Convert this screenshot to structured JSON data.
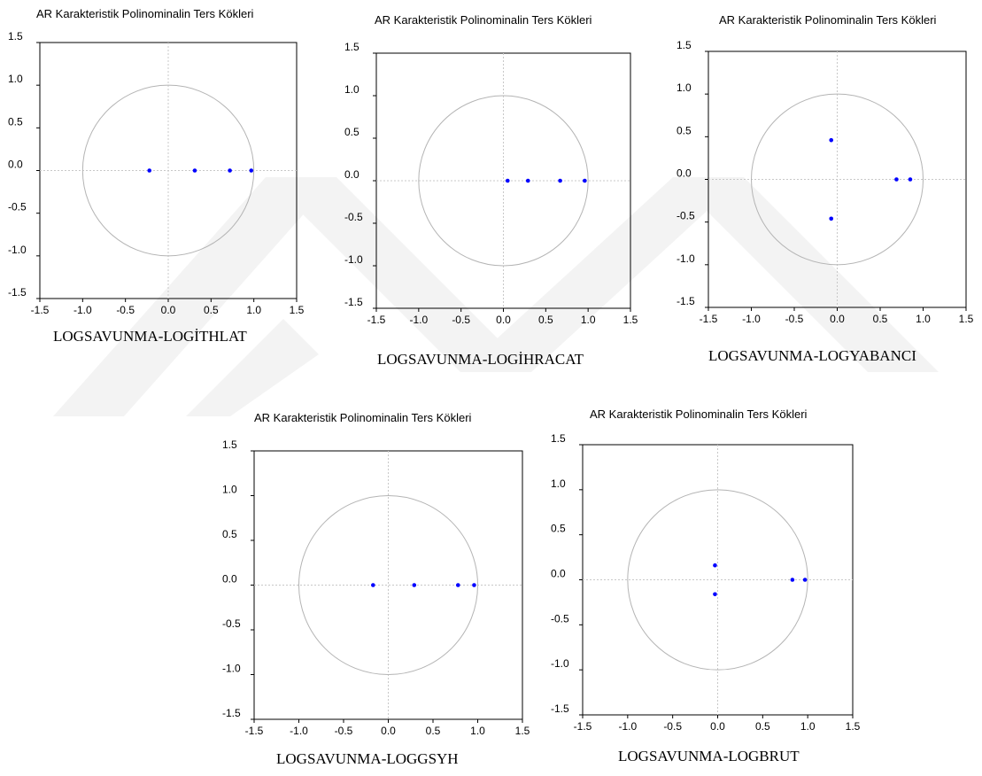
{
  "colors": {
    "root": "#0000ff",
    "unit_circle": "#b4b4b4",
    "axes": "#c8c8c8",
    "frame": "#000000",
    "watermark": "#efefef"
  },
  "chart_data": [
    {
      "type": "scatter",
      "title": "AR Karakteristik Polinominalin Ters Kökleri",
      "caption": "LOGSAVUNMA-LOGİTHLAT",
      "xlim": [
        -1.5,
        1.5
      ],
      "ylim": [
        -1.5,
        1.5
      ],
      "x_ticks": [
        "-1.5",
        "-1.0",
        "-0.5",
        "0.0",
        "0.5",
        "1.0",
        "1.5"
      ],
      "y_ticks": [
        "1.5",
        "1.0",
        "0.5",
        "0.0",
        "-0.5",
        "-1.0",
        "-1.5"
      ],
      "unit_circle": true,
      "points": [
        {
          "x": -0.22,
          "y": 0.0
        },
        {
          "x": 0.31,
          "y": 0.0
        },
        {
          "x": 0.72,
          "y": 0.0
        },
        {
          "x": 0.97,
          "y": 0.0
        }
      ]
    },
    {
      "type": "scatter",
      "title": "AR Karakteristik Polinominalin Ters Kökleri",
      "caption": "LOGSAVUNMA-LOGİHRACAT",
      "xlim": [
        -1.5,
        1.5
      ],
      "ylim": [
        -1.5,
        1.5
      ],
      "x_ticks": [
        "-1.5",
        "-1.0",
        "-0.5",
        "0.0",
        "0.5",
        "1.0",
        "1.5"
      ],
      "y_ticks": [
        "1.5",
        "1.0",
        "0.5",
        "0.0",
        "-0.5",
        "-1.0",
        "-1.5"
      ],
      "unit_circle": true,
      "points": [
        {
          "x": 0.05,
          "y": 0.0
        },
        {
          "x": 0.29,
          "y": 0.0
        },
        {
          "x": 0.67,
          "y": 0.0
        },
        {
          "x": 0.96,
          "y": 0.0
        }
      ]
    },
    {
      "type": "scatter",
      "title": "AR Karakteristik Polinominalin Ters Kökleri",
      "caption": "LOGSAVUNMA-LOGYABANCI",
      "xlim": [
        -1.5,
        1.5
      ],
      "ylim": [
        -1.5,
        1.5
      ],
      "x_ticks": [
        "-1.5",
        "-1.0",
        "-0.5",
        "0.0",
        "0.5",
        "1.0",
        "1.5"
      ],
      "y_ticks": [
        "1.5",
        "1.0",
        "0.5",
        "0.0",
        "-0.5",
        "-1.0",
        "-1.5"
      ],
      "unit_circle": true,
      "points": [
        {
          "x": -0.07,
          "y": 0.46
        },
        {
          "x": -0.07,
          "y": -0.46
        },
        {
          "x": 0.69,
          "y": 0.0
        },
        {
          "x": 0.85,
          "y": 0.0
        }
      ]
    },
    {
      "type": "scatter",
      "title": "AR Karakteristik Polinominalin Ters Kökleri",
      "caption": "LOGSAVUNMA-LOGGSYH",
      "xlim": [
        -1.5,
        1.5
      ],
      "ylim": [
        -1.5,
        1.5
      ],
      "x_ticks": [
        "-1.5",
        "-1.0",
        "-0.5",
        "0.0",
        "0.5",
        "1.0",
        "1.5"
      ],
      "y_ticks": [
        "1.5",
        "1.0",
        "0.5",
        "0.0",
        "-0.5",
        "-1.0",
        "-1.5"
      ],
      "unit_circle": true,
      "points": [
        {
          "x": -0.17,
          "y": 0.0
        },
        {
          "x": 0.29,
          "y": 0.0
        },
        {
          "x": 0.78,
          "y": 0.0
        },
        {
          "x": 0.96,
          "y": 0.0
        }
      ]
    },
    {
      "type": "scatter",
      "title": "AR Karakteristik Polinominalin Ters Kökleri",
      "caption": "LOGSAVUNMA-LOGBRUT",
      "xlim": [
        -1.5,
        1.5
      ],
      "ylim": [
        -1.5,
        1.5
      ],
      "x_ticks": [
        "-1.5",
        "-1.0",
        "-0.5",
        "0.0",
        "0.5",
        "1.0",
        "1.5"
      ],
      "y_ticks": [
        "1.5",
        "1.0",
        "0.5",
        "0.0",
        "-0.5",
        "-1.0",
        "-1.5"
      ],
      "unit_circle": true,
      "points": [
        {
          "x": -0.03,
          "y": 0.16
        },
        {
          "x": -0.03,
          "y": -0.16
        },
        {
          "x": 0.83,
          "y": 0.0
        },
        {
          "x": 0.97,
          "y": 0.0
        }
      ]
    }
  ]
}
